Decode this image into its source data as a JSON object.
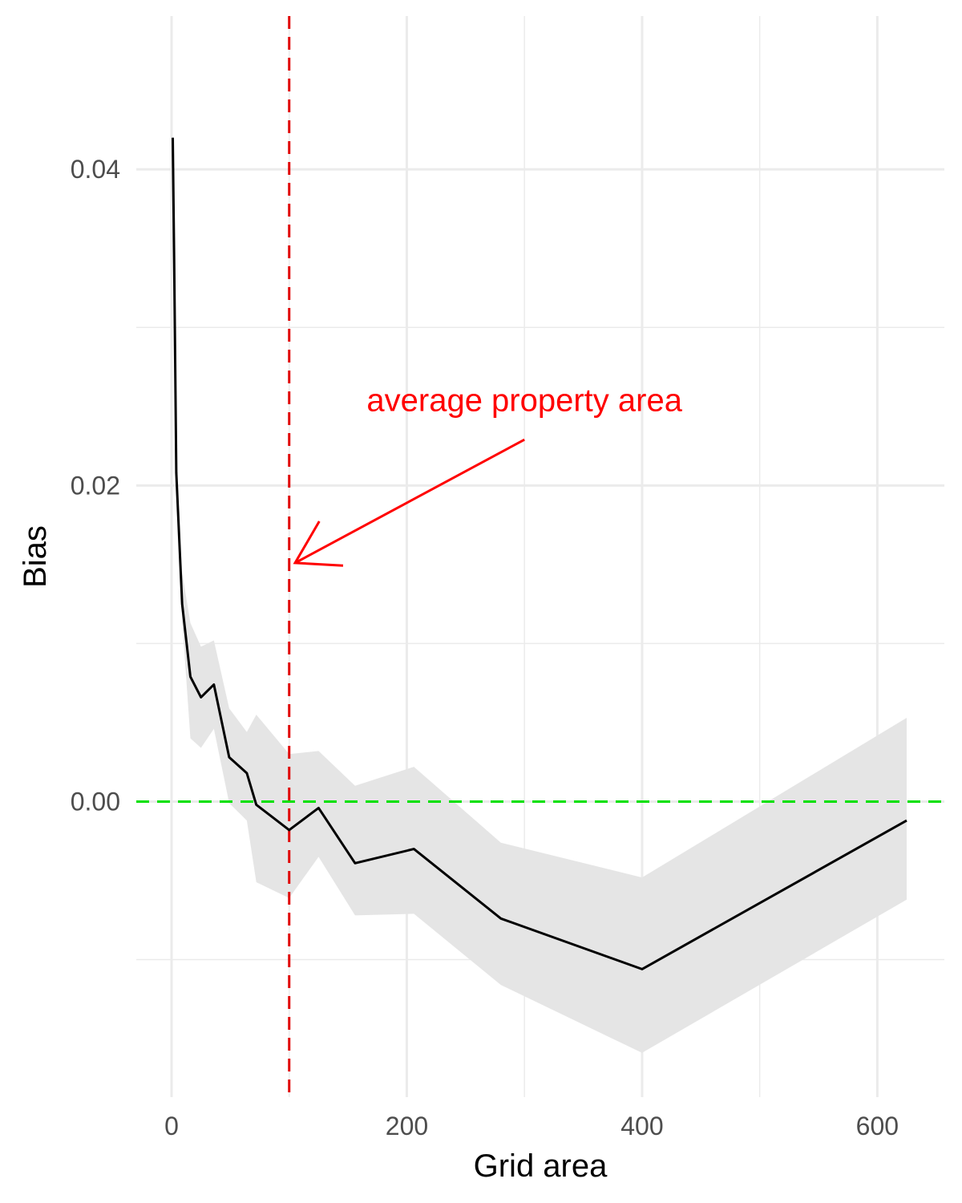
{
  "chart_data": {
    "type": "line",
    "title": "",
    "xlabel": "Grid area",
    "ylabel": "Bias",
    "xlim": [
      -30,
      657
    ],
    "ylim": [
      -0.0187,
      0.0497
    ],
    "x_ticks": [
      0,
      200,
      400,
      600
    ],
    "x_tick_labels": [
      "0",
      "200",
      "400",
      "600"
    ],
    "x_minor_ticks": [
      100,
      300,
      500
    ],
    "y_ticks": [
      0.0,
      0.02,
      0.04
    ],
    "y_tick_labels": [
      "0.00",
      "0.02",
      "0.04"
    ],
    "y_minor_ticks": [
      -0.01,
      0.01,
      0.03
    ],
    "grid": true,
    "series": [
      {
        "color": "#000000",
        "x": [
          1,
          2.25,
          4,
          9,
          16,
          25,
          36,
          49,
          64,
          72,
          100,
          125,
          156,
          206,
          280,
          400,
          625
        ],
        "y": [
          0.042,
          0.034,
          0.0208,
          0.0125,
          0.0079,
          0.0066,
          0.0074,
          0.0028,
          0.0018,
          -0.0002,
          -0.0018,
          -0.0004,
          -0.0039,
          -0.003,
          -0.0074,
          -0.0106,
          -0.0012
        ],
        "ci_lower": [
          0.042,
          0.034,
          0.0208,
          0.0115,
          0.004,
          0.0034,
          0.0046,
          -0.0001,
          -0.0012,
          -0.0051,
          -0.0061,
          -0.0035,
          -0.0072,
          -0.0071,
          -0.0116,
          -0.0159,
          -0.0062
        ],
        "ci_upper": [
          0.042,
          0.034,
          0.0208,
          0.0145,
          0.0113,
          0.0098,
          0.0102,
          0.0059,
          0.0044,
          0.0055,
          0.003,
          0.0032,
          0.001,
          0.0022,
          -0.0026,
          -0.0048,
          0.0053
        ],
        "band_color": "#e5e5e5"
      }
    ],
    "reference_lines": [
      {
        "orientation": "horizontal",
        "value": 0.0,
        "color": "#00e000",
        "style": "dashed"
      },
      {
        "orientation": "vertical",
        "value": 100,
        "color": "#e00000",
        "style": "dashed"
      }
    ],
    "annotation": {
      "text": "average property area",
      "color": "#ff0000",
      "text_x": 300,
      "text_y": 0.0247,
      "arrow_from_x": 300,
      "arrow_from_y": 0.0229,
      "arrow_to_x": 105,
      "arrow_to_y": 0.0151
    }
  }
}
